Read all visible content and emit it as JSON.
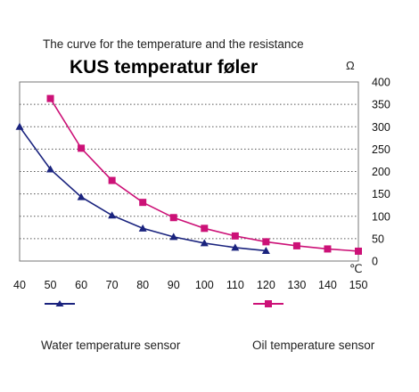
{
  "chart_data": {
    "type": "line",
    "subtitle": "The curve for the temperature and the resistance",
    "title": "KUS temperatur føler",
    "y_unit": "Ω",
    "x_unit": "℃",
    "x_ticks": [
      40,
      50,
      60,
      70,
      80,
      90,
      100,
      110,
      120,
      130,
      140,
      150
    ],
    "y_ticks": [
      0,
      50,
      100,
      150,
      200,
      250,
      300,
      350,
      400
    ],
    "xlim": [
      40,
      150
    ],
    "ylim": [
      0,
      400
    ],
    "grid": "horizontal dotted",
    "legend_position": "bottom",
    "series": [
      {
        "name": "Water temperature sensor",
        "marker": "triangle",
        "color": "#1a237e",
        "points": [
          [
            40,
            300
          ],
          [
            50,
            205
          ],
          [
            60,
            143
          ],
          [
            70,
            102
          ],
          [
            80,
            73
          ],
          [
            90,
            54
          ],
          [
            100,
            40
          ],
          [
            110,
            30
          ],
          [
            120,
            23
          ]
        ]
      },
      {
        "name": "Oil temperature sensor",
        "marker": "square",
        "color": "#cc1177",
        "points": [
          [
            50,
            363
          ],
          [
            60,
            252
          ],
          [
            70,
            180
          ],
          [
            80,
            131
          ],
          [
            90,
            97
          ],
          [
            100,
            73
          ],
          [
            110,
            56
          ],
          [
            120,
            43
          ],
          [
            130,
            34
          ],
          [
            140,
            27
          ],
          [
            150,
            22
          ]
        ]
      }
    ]
  }
}
